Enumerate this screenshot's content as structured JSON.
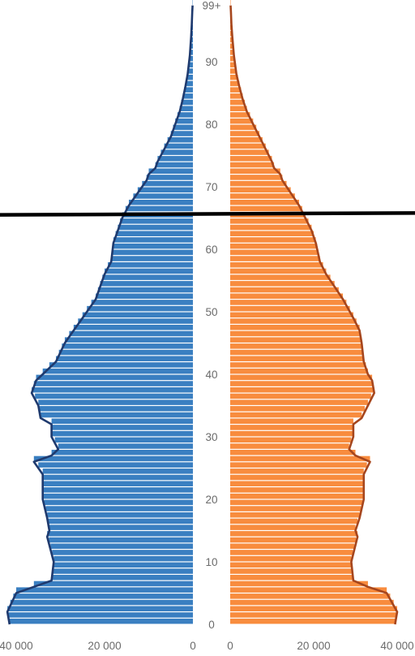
{
  "chart_data": {
    "type": "bar",
    "orientation": "horizontal-mirrored",
    "title": "",
    "xlabel": "",
    "ylabel": "",
    "age_ticks": [
      "0",
      "10",
      "20",
      "30",
      "40",
      "50",
      "60",
      "70",
      "80",
      "90",
      "99+"
    ],
    "x_ticks_left": [
      "40 000",
      "20 000",
      "0"
    ],
    "x_ticks_right": [
      "0",
      "20 000",
      "40 000"
    ],
    "xlim": [
      0,
      40000
    ],
    "age_range": [
      0,
      99
    ],
    "grid": false,
    "legend": "none",
    "series": [
      {
        "side": "left",
        "color": "#3a7fc1",
        "outline": "#1f3a6e",
        "ages": [
          0,
          2,
          5,
          6,
          7,
          10,
          14,
          15,
          17,
          20,
          24,
          26,
          27,
          28,
          30,
          32,
          33,
          35,
          37,
          39,
          40,
          42,
          45,
          47,
          49,
          52,
          54,
          56,
          58,
          61,
          63,
          65,
          67,
          69,
          71,
          72,
          73,
          74,
          76,
          78,
          80,
          82,
          84,
          86,
          88,
          91,
          94,
          96,
          98,
          99
        ],
        "values": [
          41500,
          42000,
          40000,
          36000,
          32000,
          31500,
          33000,
          32500,
          33000,
          34000,
          34000,
          36000,
          32000,
          30500,
          32000,
          32000,
          34500,
          35000,
          36500,
          35500,
          34000,
          31000,
          29000,
          27000,
          25000,
          22000,
          21000,
          20000,
          18500,
          18000,
          17000,
          16000,
          14500,
          12500,
          10500,
          10000,
          8500,
          8000,
          6500,
          5000,
          4000,
          3000,
          2300,
          1700,
          1200,
          700,
          400,
          250,
          150,
          80
        ]
      },
      {
        "side": "right",
        "color": "#f88c3e",
        "outline": "#a6461d",
        "ages": [
          0,
          2,
          5,
          6,
          7,
          10,
          14,
          15,
          17,
          20,
          24,
          26,
          27,
          28,
          30,
          32,
          33,
          35,
          37,
          39,
          40,
          42,
          45,
          47,
          49,
          52,
          54,
          56,
          58,
          61,
          63,
          65,
          67,
          69,
          71,
          72,
          73,
          74,
          76,
          78,
          80,
          82,
          84,
          86,
          88,
          91,
          94,
          96,
          98,
          99
        ],
        "values": [
          39500,
          40000,
          37500,
          33000,
          29500,
          29000,
          30500,
          30000,
          31000,
          32000,
          32000,
          33500,
          30000,
          28500,
          29500,
          29500,
          31500,
          33000,
          34500,
          34000,
          33000,
          32000,
          31500,
          31000,
          29500,
          27000,
          25000,
          23000,
          21500,
          20500,
          19500,
          18000,
          16500,
          14500,
          12500,
          12000,
          10500,
          10000,
          8500,
          7000,
          5500,
          4000,
          3000,
          2200,
          1500,
          900,
          500,
          300,
          180,
          100
        ]
      }
    ],
    "annotation": {
      "type": "line",
      "color": "#000000",
      "from_age": 65.5,
      "to_age": 65.8
    }
  }
}
